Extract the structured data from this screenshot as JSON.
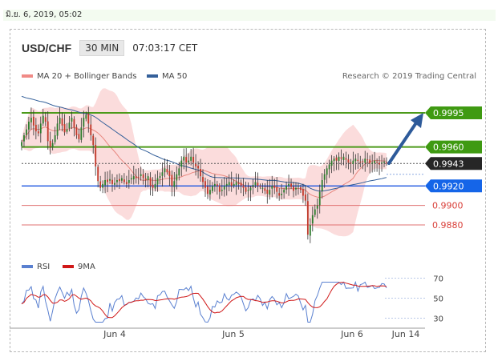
{
  "date_bar": "มิ.ย. 6, 2019, 05:02",
  "header": {
    "pair": "USD/CHF",
    "timeframe": "30 MIN",
    "time": "07:03:17 CET"
  },
  "legend": {
    "bollinger_label": "MA 20 + Bollinger Bands",
    "ma50_label": "MA 50",
    "credit": "Research © 2019 Trading Central"
  },
  "colors": {
    "resistance": "#4c9a1a",
    "support_blue": "#1b55e0",
    "support_red": "#e07070",
    "current": "#222222",
    "bollinger_fill": "#f9d0d0",
    "bollinger_line": "#e88880",
    "ma50": "#34609a",
    "candle_up": "#2e7d2e",
    "candle_down": "#c0392b",
    "rsi": "#5a80d0",
    "rsi_ma": "#d01818",
    "arrow": "#2d5a9a"
  },
  "chart_data": [
    {
      "type": "candlestick",
      "x_labels": [
        "Jun 4",
        "Jun 5",
        "Jun 6",
        "Jun 14"
      ],
      "ylim": [
        0.9852,
        1.0027
      ],
      "levels": [
        {
          "value": 0.9995,
          "label": "0.9995",
          "kind": "resistance"
        },
        {
          "value": 0.996,
          "label": "0.9960",
          "kind": "resistance"
        },
        {
          "value": 0.9943,
          "label": "0.9943",
          "kind": "current"
        },
        {
          "value": 0.992,
          "label": "0.9920",
          "kind": "support_blue"
        },
        {
          "value": 0.99,
          "label": "0.9900",
          "kind": "support_red"
        },
        {
          "value": 0.988,
          "label": "0.9880",
          "kind": "support_red"
        }
      ],
      "close": [
        0.9965,
        0.9972,
        0.9978,
        0.9986,
        0.999,
        0.9982,
        0.9976,
        0.9974,
        0.9984,
        0.9992,
        0.9986,
        0.9966,
        0.996,
        0.9964,
        0.9972,
        0.9984,
        0.999,
        0.9982,
        0.9975,
        0.9978,
        0.9985,
        0.999,
        0.998,
        0.9972,
        0.9968,
        0.998,
        0.999,
        0.9993,
        0.9984,
        0.9972,
        0.9962,
        0.994,
        0.9925,
        0.9918,
        0.9922,
        0.9926,
        0.9924,
        0.9927,
        0.9922,
        0.9923,
        0.9926,
        0.9925,
        0.9928,
        0.9924,
        0.9922,
        0.9926,
        0.9928,
        0.993,
        0.9928,
        0.9929,
        0.9932,
        0.9928,
        0.9926,
        0.993,
        0.992,
        0.9918,
        0.9922,
        0.9928,
        0.993,
        0.9934,
        0.9938,
        0.9934,
        0.993,
        0.992,
        0.9925,
        0.9932,
        0.9938,
        0.9946,
        0.995,
        0.9944,
        0.9946,
        0.995,
        0.9944,
        0.994,
        0.9938,
        0.993,
        0.9924,
        0.9918,
        0.9912,
        0.9916,
        0.992,
        0.9922,
        0.992,
        0.9914,
        0.9916,
        0.992,
        0.9922,
        0.9924,
        0.992,
        0.9922,
        0.9924,
        0.9922,
        0.992,
        0.9918,
        0.9914,
        0.9916,
        0.9918,
        0.9921,
        0.9924,
        0.992,
        0.9919,
        0.9918,
        0.9915,
        0.9912,
        0.9916,
        0.992,
        0.9918,
        0.9914,
        0.991,
        0.9912,
        0.9916,
        0.992,
        0.9922,
        0.9919,
        0.9915,
        0.9918,
        0.992,
        0.9916,
        0.991,
        0.9905,
        0.987,
        0.988,
        0.989,
        0.9896,
        0.99,
        0.9914,
        0.9926,
        0.9932,
        0.9938,
        0.9942,
        0.9946,
        0.9948,
        0.9946,
        0.995,
        0.9948,
        0.995,
        0.9947,
        0.9944,
        0.9943,
        0.9946,
        0.9948,
        0.9946,
        0.9944,
        0.9945,
        0.9948,
        0.9947,
        0.9943,
        0.9944,
        0.9946,
        0.9944,
        0.9942,
        0.9944,
        0.9945,
        0.9943
      ]
    },
    {
      "type": "line",
      "series": [
        {
          "name": "RSI"
        },
        {
          "name": "9MA"
        }
      ],
      "yticks": [
        70,
        50,
        30
      ],
      "ylim": [
        20,
        80
      ]
    }
  ]
}
